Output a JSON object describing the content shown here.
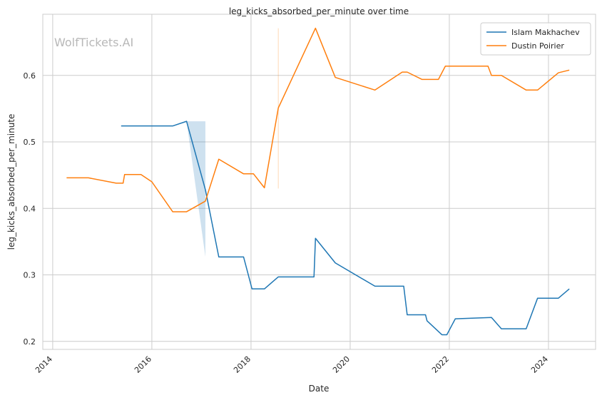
{
  "chart_data": {
    "type": "line",
    "title": "leg_kicks_absorbed_per_minute over time",
    "xlabel": "Date",
    "ylabel": "leg_kicks_absorbed_per_minute",
    "watermark": "WolfTickets.AI",
    "xlim": [
      2013.8,
      2024.95
    ],
    "ylim": [
      0.188,
      0.692
    ],
    "xticks": [
      2014,
      2016,
      2018,
      2020,
      2022,
      2024
    ],
    "yticks": [
      0.2,
      0.3,
      0.4,
      0.5,
      0.6
    ],
    "xtick_labels": [
      "2014",
      "2016",
      "2018",
      "2020",
      "2022",
      "2024"
    ],
    "ytick_labels": [
      "0.2",
      "0.3",
      "0.4",
      "0.5",
      "0.6"
    ],
    "grid": true,
    "legend_position": "top-right",
    "series": [
      {
        "name": "Islam Makhachev",
        "color": "#1f77b4",
        "x": [
          2015.38,
          2016.42,
          2016.7,
          2017.08,
          2017.35,
          2017.85,
          2018.02,
          2018.27,
          2018.55,
          2019.27,
          2019.3,
          2019.7,
          2020.5,
          2021.08,
          2021.15,
          2021.52,
          2021.55,
          2021.85,
          2021.95,
          2022.12,
          2022.85,
          2023.05,
          2023.55,
          2023.78,
          2024.2,
          2024.42
        ],
        "y": [
          0.524,
          0.524,
          0.531,
          0.428,
          0.327,
          0.327,
          0.279,
          0.279,
          0.297,
          0.297,
          0.355,
          0.318,
          0.283,
          0.283,
          0.24,
          0.24,
          0.231,
          0.21,
          0.21,
          0.234,
          0.236,
          0.219,
          0.219,
          0.265,
          0.265,
          0.279
        ],
        "band": {
          "x": [
            2016.7,
            2017.08
          ],
          "lower": [
            0.531,
            0.327
          ],
          "upper": [
            0.531,
            0.531
          ]
        }
      },
      {
        "name": "Dustin Poirier",
        "color": "#ff7f0e",
        "x": [
          2014.28,
          2014.72,
          2015.28,
          2015.42,
          2015.45,
          2015.78,
          2016.0,
          2016.42,
          2016.7,
          2017.08,
          2017.35,
          2017.85,
          2018.05,
          2018.27,
          2018.55,
          2019.3,
          2019.7,
          2020.5,
          2021.05,
          2021.15,
          2021.45,
          2021.78,
          2021.92,
          2022.78,
          2022.85,
          2023.05,
          2023.55,
          2023.78,
          2024.2,
          2024.42
        ],
        "y": [
          0.446,
          0.446,
          0.438,
          0.438,
          0.451,
          0.451,
          0.44,
          0.395,
          0.395,
          0.411,
          0.474,
          0.452,
          0.452,
          0.431,
          0.551,
          0.671,
          0.597,
          0.578,
          0.605,
          0.605,
          0.594,
          0.594,
          0.614,
          0.614,
          0.6,
          0.6,
          0.578,
          0.578,
          0.604,
          0.608
        ],
        "band": {
          "x": [
            2018.55
          ],
          "lower": [
            0.43
          ],
          "upper": [
            0.671
          ]
        }
      }
    ]
  }
}
